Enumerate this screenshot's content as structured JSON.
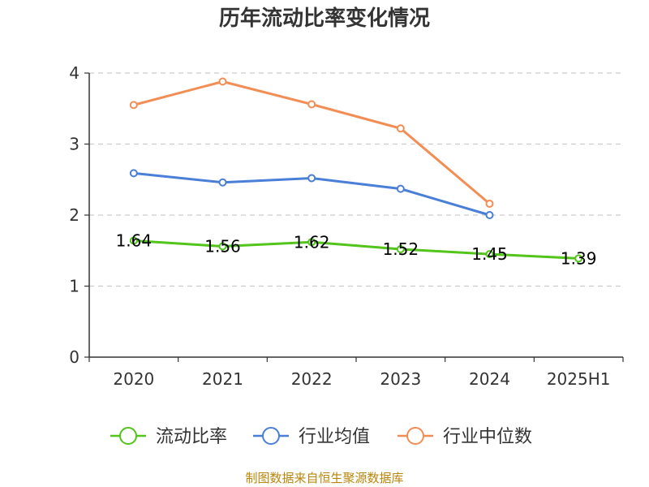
{
  "chart_data": {
    "type": "line",
    "title": "历年流动比率变化情况",
    "categories": [
      "2020",
      "2021",
      "2022",
      "2023",
      "2024",
      "2025H1"
    ],
    "ylim": [
      0,
      4
    ],
    "yticks": [
      "0",
      "1",
      "2",
      "3",
      "4"
    ],
    "grid": true,
    "legend_position": "bottom",
    "series": [
      {
        "name": "流动比率",
        "color": "#52c41a",
        "values": [
          1.64,
          1.56,
          1.62,
          1.52,
          1.45,
          1.39
        ],
        "labels": [
          "1.64",
          "1.56",
          "1.62",
          "1.52",
          "1.45",
          "1.39"
        ]
      },
      {
        "name": "行业均值",
        "color": "#4a7fd8",
        "values": [
          2.59,
          2.46,
          2.52,
          2.37,
          2.0,
          null
        ]
      },
      {
        "name": "行业中位数",
        "color": "#f28e55",
        "values": [
          3.55,
          3.88,
          3.56,
          3.22,
          2.16,
          null
        ]
      }
    ],
    "source": "制图数据来自恒生聚源数据库"
  }
}
